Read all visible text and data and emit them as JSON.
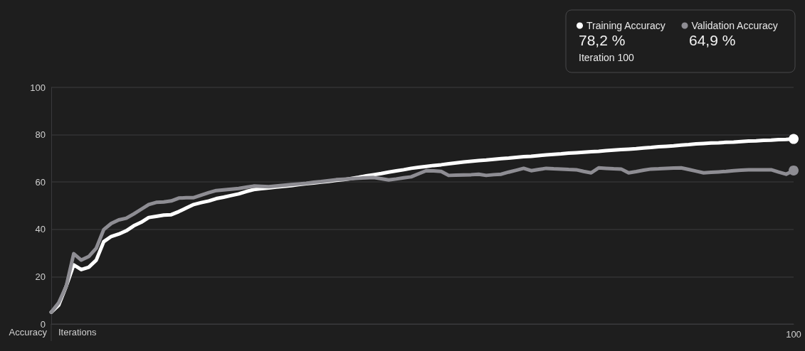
{
  "chart_data": {
    "type": "line",
    "xlabel": "Iterations",
    "ylabel": "Accuracy",
    "categories": [
      null,
      null,
      null,
      null,
      null,
      null,
      null,
      null,
      null,
      null,
      null,
      null,
      null,
      null,
      null,
      null,
      null,
      null,
      null,
      null,
      null,
      null,
      null,
      null,
      null,
      null,
      null,
      null,
      null,
      null,
      null,
      null,
      null,
      null,
      null,
      null,
      null,
      null,
      null,
      null,
      null,
      null,
      null,
      null,
      null,
      null,
      null,
      null,
      null,
      null,
      null,
      null,
      null,
      null,
      null,
      null,
      null,
      null,
      null,
      null,
      null,
      null,
      null,
      null,
      null,
      null,
      null,
      null,
      null,
      null,
      null,
      null,
      null,
      null,
      null,
      null,
      null,
      null,
      null,
      null,
      null,
      null,
      null,
      null,
      null,
      null,
      null,
      null,
      null,
      null,
      null,
      null,
      null,
      null,
      null,
      null,
      null,
      null,
      null,
      "100"
    ],
    "ylim": [
      0,
      100
    ],
    "yticks": [
      0,
      20,
      40,
      60,
      80,
      100
    ],
    "grid": "y",
    "legend": "top right",
    "line_style": "solid",
    "annotations": [
      "78,2 %",
      "64,9 %",
      "Iteration 100"
    ],
    "series": [
      {
        "name": "Training Accuracy",
        "color": "#ffffff",
        "values": [
          5,
          8,
          16,
          25,
          23,
          24,
          27,
          34.8,
          37,
          38,
          39.4,
          41.5,
          43,
          45,
          45.5,
          46,
          46.2,
          47.5,
          49,
          50.5,
          51.3,
          52,
          53,
          53.6,
          54.3,
          55,
          56,
          56.8,
          57.2,
          57.5,
          57.9,
          58.2,
          58.5,
          58.9,
          59.3,
          59.6,
          60,
          60.3,
          60.7,
          61,
          61.5,
          62,
          62.6,
          63.1,
          63.6,
          64.2,
          64.7,
          65.2,
          65.8,
          66.2,
          66.6,
          67,
          67.3,
          67.7,
          68.1,
          68.5,
          68.8,
          69.1,
          69.3,
          69.6,
          69.9,
          70.1,
          70.4,
          70.7,
          70.9,
          71.2,
          71.5,
          71.7,
          71.9,
          72.2,
          72.4,
          72.6,
          72.8,
          73,
          73.3,
          73.5,
          73.7,
          73.9,
          74.1,
          74.4,
          74.6,
          74.9,
          75.1,
          75.3,
          75.6,
          75.8,
          76.1,
          76.3,
          76.5,
          76.6,
          76.8,
          76.9,
          77.1,
          77.3,
          77.4,
          77.6,
          77.7,
          77.9,
          78,
          78.2
        ]
      },
      {
        "name": "Validation Accuracy",
        "color": "#8e8d93",
        "values": [
          5,
          9,
          16,
          29.7,
          27,
          28.5,
          32,
          39.9,
          42.5,
          44,
          44.7,
          46.5,
          48.5,
          50.5,
          51.4,
          51.6,
          52,
          53.2,
          53.4,
          53.4,
          54.5,
          55.5,
          56.4,
          56.7,
          57,
          57.3,
          57.8,
          58.3,
          58.2,
          58,
          58.3,
          58.6,
          58.9,
          59.2,
          59.5,
          59.9,
          60.2,
          60.6,
          61,
          61.2,
          61.4,
          61.6,
          61.8,
          61.9,
          61.4,
          60.9,
          61.3,
          61.8,
          62.2,
          63.5,
          64.8,
          64.7,
          64.5,
          62.8,
          62.9,
          63,
          63.1,
          63.3,
          62.8,
          63.1,
          63.3,
          64.2,
          65,
          65.8,
          64.8,
          65.3,
          65.8,
          65.6,
          65.5,
          65.3,
          65.2,
          64.5,
          63.9,
          66,
          65.8,
          65.6,
          65.5,
          63.9,
          64.4,
          65,
          65.5,
          65.6,
          65.8,
          65.9,
          66,
          65.3,
          64.6,
          63.9,
          64.1,
          64.3,
          64.5,
          64.8,
          65,
          65.2,
          65.2,
          65.2,
          65.2,
          64.2,
          63.3,
          64.9
        ]
      }
    ]
  }
}
